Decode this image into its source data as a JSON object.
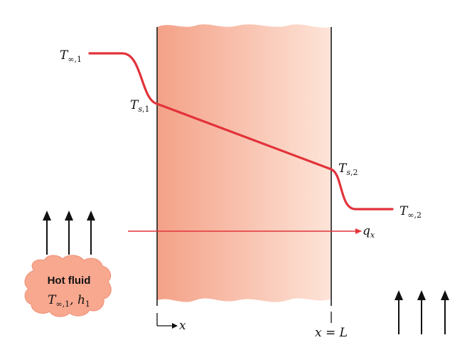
{
  "colors": {
    "profile": "#e2333a",
    "wall_left": "#f4a187",
    "wall_right": "#fde4d8",
    "blob": "#f7a88f",
    "ink": "#111111"
  },
  "labels": {
    "t_inf1": {
      "main": "T",
      "sub": "∞,1"
    },
    "t_s1": {
      "main": "T",
      "sub": "s",
      "sub2": ",1"
    },
    "t_s2": {
      "main": "T",
      "sub": "s",
      "sub2": ",2"
    },
    "t_inf2": {
      "main": "T",
      "sub": "∞,2"
    },
    "qx": {
      "main": "q",
      "sub": "x"
    },
    "x_axis": "x",
    "x_eq_L": "x = L"
  },
  "hot_fluid": {
    "title": "Hot fluid",
    "t_main": "T",
    "t_sub": "∞,1",
    "sep": ", ",
    "h_main": "h",
    "h_sub": "1"
  },
  "icons": {
    "flow_arrows_left": "up-arrow-icon",
    "flow_arrows_right": "up-arrow-icon"
  }
}
